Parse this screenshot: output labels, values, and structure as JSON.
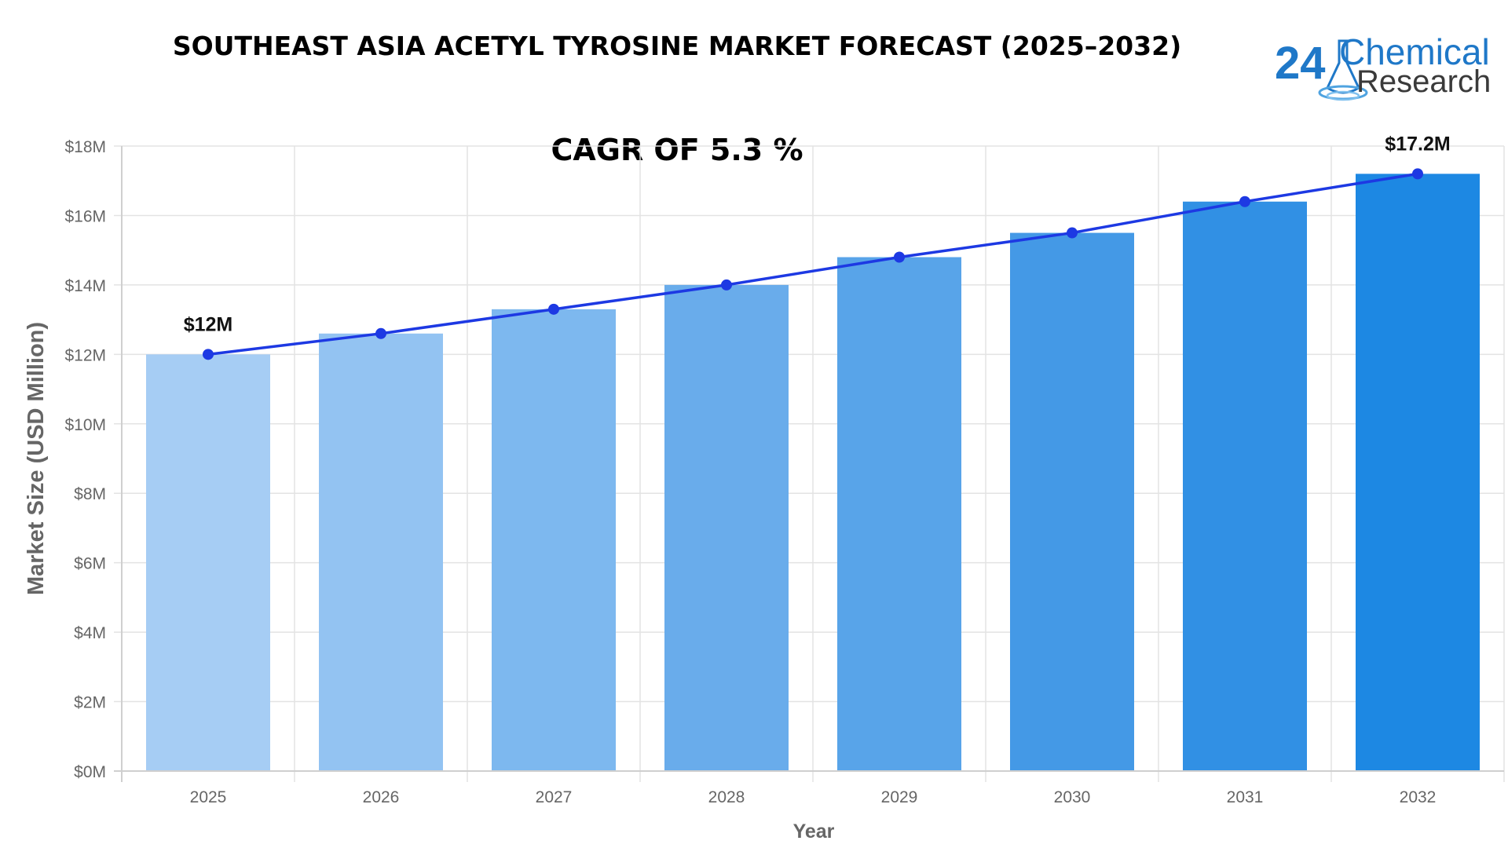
{
  "chart_data": {
    "type": "bar",
    "title": "SOUTHEAST ASIA ACETYL TYROSINE MARKET FORECAST (2025–2032)",
    "subtitle": "CAGR OF 5.3 %",
    "xlabel": "Year",
    "ylabel": "Market Size (USD Million)",
    "categories": [
      "2025",
      "2026",
      "2027",
      "2028",
      "2029",
      "2030",
      "2031",
      "2032"
    ],
    "series": [
      {
        "type": "bar",
        "values": [
          12.0,
          12.6,
          13.3,
          14.0,
          14.8,
          15.5,
          16.4,
          17.2
        ]
      },
      {
        "type": "line",
        "values": [
          12.0,
          12.6,
          13.3,
          14.0,
          14.8,
          15.5,
          16.4,
          17.2
        ]
      }
    ],
    "ylim": [
      0,
      18
    ],
    "yticks": [
      "$0M",
      "$2M",
      "$4M",
      "$6M",
      "$8M",
      "$10M",
      "$12M",
      "$14M",
      "$16M",
      "$18M"
    ],
    "annotations": [
      {
        "category": "2025",
        "text": "$12M"
      },
      {
        "category": "2032",
        "text": "$17.2M"
      }
    ],
    "grid": true,
    "legend": "none",
    "colors": {
      "bars": [
        "#a6cdf4",
        "#93c3f2",
        "#7db8ef",
        "#69aceb",
        "#58a4e9",
        "#4499e6",
        "#3190e4",
        "#1d88e3"
      ],
      "line": "#1d39e3",
      "grid": "#e3e3e3"
    }
  },
  "logo": {
    "number": "24",
    "word1": "Chemical",
    "word2": "Research",
    "icon": "flask-icon"
  }
}
